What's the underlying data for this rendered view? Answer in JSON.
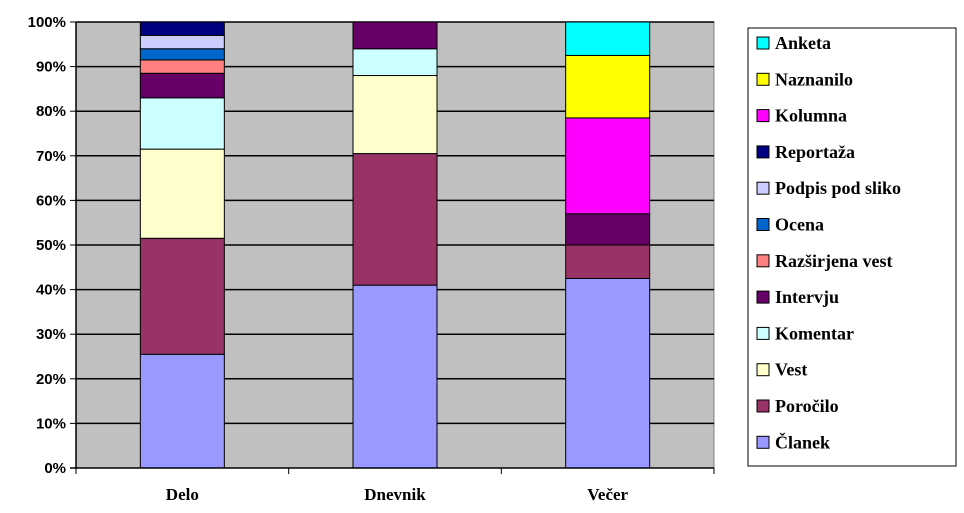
{
  "chart_data": {
    "type": "bar",
    "stacked": true,
    "percent": true,
    "categories": [
      "Delo",
      "Dnevnik",
      "Večer"
    ],
    "ylim": [
      0,
      100
    ],
    "yticks": [
      "0%",
      "10%",
      "20%",
      "30%",
      "40%",
      "50%",
      "60%",
      "70%",
      "80%",
      "90%",
      "100%"
    ],
    "grid": true,
    "legend_position": "right",
    "series": [
      {
        "name": "Članek",
        "color": "#9999ff",
        "values": [
          25.5,
          41.0,
          42.5
        ]
      },
      {
        "name": "Poročilo",
        "color": "#993366",
        "values": [
          26.0,
          29.5,
          7.5
        ]
      },
      {
        "name": "Vest",
        "color": "#ffffcc",
        "values": [
          20.0,
          17.5,
          0
        ]
      },
      {
        "name": "Komentar",
        "color": "#ccffff",
        "values": [
          11.5,
          6.0,
          0
        ]
      },
      {
        "name": "Intervju",
        "color": "#660066",
        "values": [
          5.5,
          6.0,
          7.0
        ]
      },
      {
        "name": "Razširjena vest",
        "color": "#ff8080",
        "values": [
          3.0,
          0,
          0
        ]
      },
      {
        "name": "Ocena",
        "color": "#0066cc",
        "values": [
          2.5,
          0,
          0
        ]
      },
      {
        "name": "Podpis pod sliko",
        "color": "#ccccff",
        "values": [
          3.0,
          0,
          0
        ]
      },
      {
        "name": "Reportaža",
        "color": "#000080",
        "values": [
          3.0,
          0,
          0
        ]
      },
      {
        "name": "Kolumna",
        "color": "#ff00ff",
        "values": [
          0,
          0,
          21.5
        ]
      },
      {
        "name": "Naznanilo",
        "color": "#ffff00",
        "values": [
          0,
          0,
          14.0
        ]
      },
      {
        "name": "Anketa",
        "color": "#00ffff",
        "values": [
          0,
          0,
          7.5
        ]
      }
    ],
    "legend_order": [
      "Anketa",
      "Naznanilo",
      "Kolumna",
      "Reportaža",
      "Podpis pod sliko",
      "Ocena",
      "Razširjena vest",
      "Intervju",
      "Komentar",
      "Vest",
      "Poročilo",
      "Članek"
    ],
    "plot_background": "#c0c0c0"
  }
}
